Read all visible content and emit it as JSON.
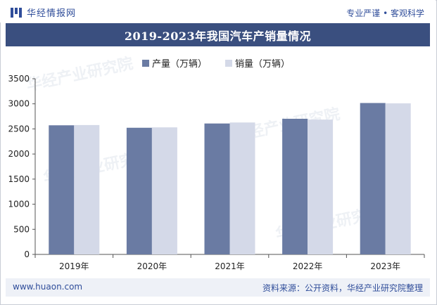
{
  "header": {
    "logo_text": "华经情报网",
    "slogan": "专业严谨 • 客观科学"
  },
  "chart_data": {
    "type": "bar",
    "title": "2019-2023年我国汽车产销量情况",
    "categories": [
      "2019年",
      "2020年",
      "2021年",
      "2022年",
      "2023年"
    ],
    "series": [
      {
        "name": "产量（万辆）",
        "values": [
          2572,
          2523,
          2608,
          2702,
          3016
        ],
        "color": "#6a7ba3"
      },
      {
        "name": "销量（万辆）",
        "values": [
          2577,
          2531,
          2628,
          2686,
          3009
        ],
        "color": "#d4d9e8"
      }
    ],
    "ylim": [
      0,
      3500
    ],
    "yticks": [
      "0",
      "500",
      "1000",
      "1500",
      "2000",
      "2500",
      "3000",
      "3500"
    ],
    "ytick_values": [
      0,
      500,
      1000,
      1500,
      2000,
      2500,
      3000,
      3500
    ],
    "xlabel": "",
    "ylabel": "",
    "legend": "top-center",
    "grid": false
  },
  "footer": {
    "url": "www.huaon.com",
    "source": "资料来源：公开资料，华经产业研究院整理"
  },
  "colors": {
    "title_bar": "#3a4f7f",
    "brand_blue": "#2f4d9a",
    "footer_bg": "#eef1f7"
  }
}
